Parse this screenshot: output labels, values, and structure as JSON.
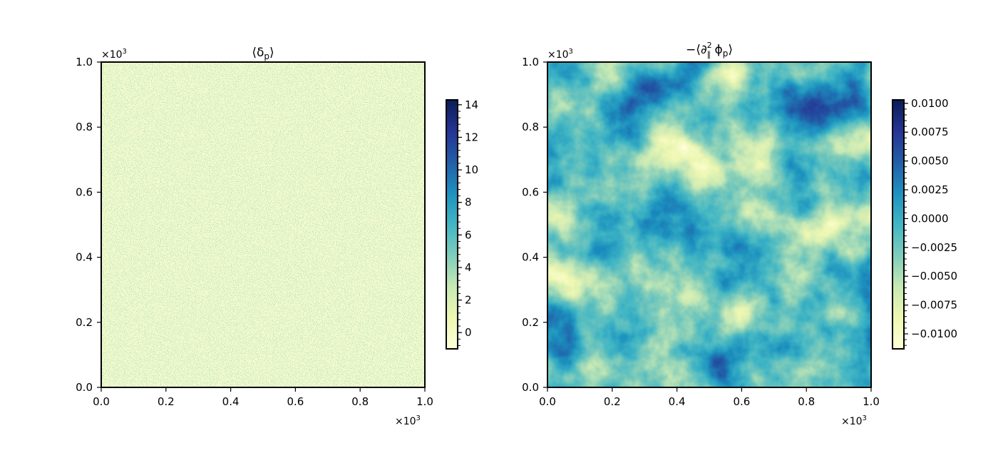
{
  "chart_data": [
    {
      "type": "heatmap",
      "title": "⟨δp⟩",
      "title_parts": {
        "main": "⟨δ",
        "sub": "p",
        "close": "⟩"
      },
      "xlabel": "",
      "ylabel": "",
      "xlim": [
        0.0,
        1.0
      ],
      "ylim": [
        0.0,
        1.0
      ],
      "x_ticks": [
        "0.0",
        "0.2",
        "0.4",
        "0.6",
        "0.8",
        "1.0"
      ],
      "y_ticks": [
        "0.0",
        "0.2",
        "0.4",
        "0.6",
        "0.8",
        "1.0"
      ],
      "x_multiplier": {
        "base": "×10",
        "exp": "3"
      },
      "y_multiplier": {
        "base": "×10",
        "exp": "3"
      },
      "colormap": "YlGnBu",
      "colorbar": {
        "range": [
          -1,
          14.3
        ],
        "ticks": [
          "0",
          "2",
          "4",
          "6",
          "8",
          "10",
          "12",
          "14"
        ],
        "tick_values": [
          0,
          2,
          4,
          6,
          8,
          10,
          12,
          14
        ]
      },
      "field_description": "near-uniform pale field with sparse sharp green-blue speckles",
      "grid": false
    },
    {
      "type": "heatmap",
      "title": "−⟨∂∥² ϕp⟩",
      "title_parts": {
        "prefix": "−⟨∂",
        "sup": "2",
        "sub1": "∥",
        "phi": " ϕ",
        "sub2": "p",
        "close": "⟩"
      },
      "xlabel": "",
      "ylabel": "",
      "xlim": [
        0.0,
        1.0
      ],
      "ylim": [
        0.0,
        1.0
      ],
      "x_ticks": [
        "0.0",
        "0.2",
        "0.4",
        "0.6",
        "0.8",
        "1.0"
      ],
      "y_ticks": [
        "0.0",
        "0.2",
        "0.4",
        "0.6",
        "0.8",
        "1.0"
      ],
      "x_multiplier": {
        "base": "×10",
        "exp": "3"
      },
      "y_multiplier": {
        "base": "×10",
        "exp": "3"
      },
      "colormap": "YlGnBu",
      "colorbar": {
        "range": [
          -0.0113,
          0.0103
        ],
        "ticks": [
          "0.0100",
          "0.0075",
          "0.0050",
          "0.0025",
          "0.0000",
          "−0.0025",
          "−0.0050",
          "−0.0075",
          "−0.0100"
        ],
        "tick_values": [
          0.01,
          0.0075,
          0.005,
          0.0025,
          0.0,
          -0.0025,
          -0.005,
          -0.0075,
          -0.01
        ]
      },
      "field_description": "smooth cloudy random field with blue and pale yellow patches",
      "grid": false
    }
  ],
  "colors": {
    "cmap_stops": [
      "#ffffd9",
      "#edf8b1",
      "#c7e9b4",
      "#7fcdbb",
      "#41b6c4",
      "#1d91c0",
      "#225ea8",
      "#253494",
      "#081d58"
    ],
    "axis": "#000000",
    "background": "#ffffff"
  }
}
